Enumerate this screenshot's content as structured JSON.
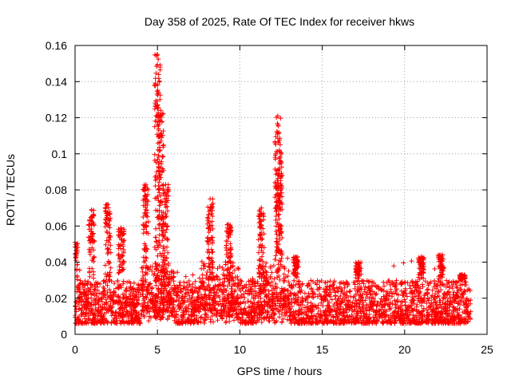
{
  "chart_data": {
    "type": "scatter",
    "title": "Day 358 of 2025, Rate Of TEC Index for receiver hkws",
    "xlabel": "GPS time / hours",
    "ylabel": "ROTI / TECUs",
    "xlim": [
      0,
      25
    ],
    "ylim": [
      0,
      0.16
    ],
    "x_ticks": [
      "0",
      "5",
      "10",
      "15",
      "20",
      "25"
    ],
    "y_ticks": [
      "0",
      "0.02",
      "0.04",
      "0.06",
      "0.08",
      "0.1",
      "0.12",
      "0.14",
      "0.16"
    ],
    "grid": true,
    "marker": "+",
    "colors": {
      "series": "#ff0000",
      "grid": "#a0a0a0",
      "axis": "#000000"
    },
    "series": [
      {
        "name": "ROTI",
        "description": "dense scatter of ROTI values, baseline ~0.005-0.03 TECU/s across 0-24 h",
        "peaks": [
          {
            "x": 0.0,
            "y": 0.051
          },
          {
            "x": 1.0,
            "y": 0.069
          },
          {
            "x": 2.0,
            "y": 0.072
          },
          {
            "x": 2.8,
            "y": 0.059
          },
          {
            "x": 4.3,
            "y": 0.083
          },
          {
            "x": 5.0,
            "y": 0.155
          },
          {
            "x": 5.2,
            "y": 0.124
          },
          {
            "x": 5.5,
            "y": 0.083
          },
          {
            "x": 8.2,
            "y": 0.075
          },
          {
            "x": 9.3,
            "y": 0.061
          },
          {
            "x": 11.3,
            "y": 0.07
          },
          {
            "x": 12.3,
            "y": 0.121
          },
          {
            "x": 12.4,
            "y": 0.102
          },
          {
            "x": 13.4,
            "y": 0.043
          },
          {
            "x": 17.2,
            "y": 0.04
          },
          {
            "x": 21.0,
            "y": 0.043
          },
          {
            "x": 22.2,
            "y": 0.044
          },
          {
            "x": 23.5,
            "y": 0.033
          }
        ]
      }
    ]
  }
}
